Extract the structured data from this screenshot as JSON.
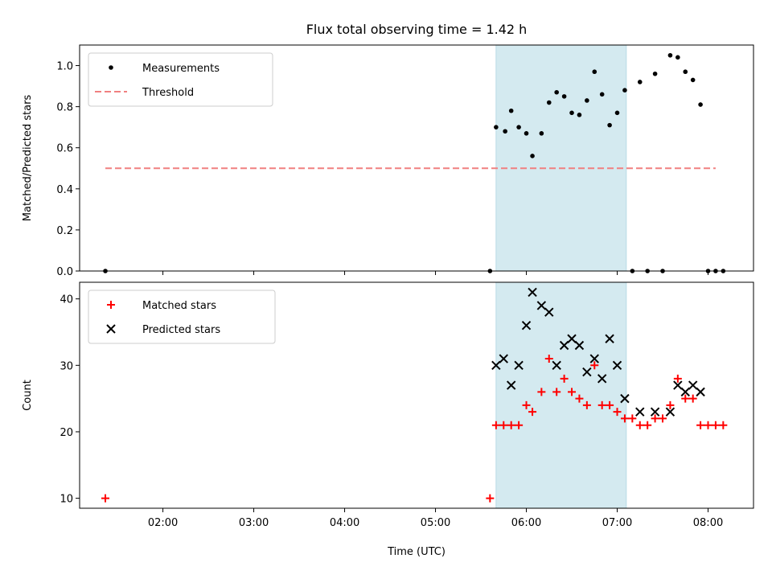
{
  "title": "Flux total observing time = 1.42 h",
  "xlabel": "Time (UTC)",
  "chart_data": [
    {
      "type": "scatter",
      "ylabel": "Matched/Predicted stars",
      "ylim": [
        0,
        1.1
      ],
      "yticks": [
        "0.0",
        "0.2",
        "0.4",
        "0.6",
        "0.8",
        "1.0"
      ],
      "xlim": [
        "01:05",
        "08:30"
      ],
      "legend": {
        "placement": "top-left",
        "entries": [
          "Measurements",
          "Threshold"
        ]
      },
      "shaded_interval": [
        "05:40",
        "07:06"
      ],
      "shade_color": "#d4eaf0",
      "series": [
        {
          "name": "Measurements",
          "color": "#000000",
          "marker": "dot",
          "points": [
            [
              "01:22",
              0.0
            ],
            [
              "05:36",
              0.0
            ],
            [
              "05:40",
              0.7
            ],
            [
              "05:46",
              0.68
            ],
            [
              "05:50",
              0.78
            ],
            [
              "05:55",
              0.7
            ],
            [
              "06:00",
              0.67
            ],
            [
              "06:04",
              0.56
            ],
            [
              "06:10",
              0.67
            ],
            [
              "06:15",
              0.82
            ],
            [
              "06:20",
              0.87
            ],
            [
              "06:25",
              0.85
            ],
            [
              "06:30",
              0.77
            ],
            [
              "06:35",
              0.76
            ],
            [
              "06:40",
              0.83
            ],
            [
              "06:45",
              0.97
            ],
            [
              "06:50",
              0.86
            ],
            [
              "06:55",
              0.71
            ],
            [
              "07:00",
              0.77
            ],
            [
              "07:05",
              0.88
            ],
            [
              "07:10",
              0.0
            ],
            [
              "07:15",
              0.92
            ],
            [
              "07:20",
              0.0
            ],
            [
              "07:25",
              0.96
            ],
            [
              "07:30",
              0.0
            ],
            [
              "07:35",
              1.05
            ],
            [
              "07:40",
              1.04
            ],
            [
              "07:45",
              0.97
            ],
            [
              "07:50",
              0.93
            ],
            [
              "07:55",
              0.81
            ],
            [
              "08:00",
              0.0
            ],
            [
              "08:05",
              0.0
            ],
            [
              "08:10",
              0.0
            ]
          ]
        },
        {
          "name": "Threshold",
          "color": "#f08080",
          "style": "dashed",
          "points": [
            [
              "01:22",
              0.5
            ],
            [
              "08:05",
              0.5
            ]
          ]
        }
      ]
    },
    {
      "type": "scatter",
      "ylabel": "Count",
      "ylim": [
        8.5,
        42.5
      ],
      "yticks": [
        "10",
        "20",
        "30",
        "40"
      ],
      "xlim": [
        "01:05",
        "08:30"
      ],
      "xticks": [
        "02:00",
        "03:00",
        "04:00",
        "05:00",
        "06:00",
        "07:00",
        "08:00"
      ],
      "legend": {
        "placement": "top-left",
        "entries": [
          "Matched stars",
          "Predicted stars"
        ]
      },
      "shaded_interval": [
        "05:40",
        "07:06"
      ],
      "shade_color": "#d4eaf0",
      "series": [
        {
          "name": "Matched stars",
          "color": "#ff0000",
          "marker": "plus",
          "points": [
            [
              "01:22",
              10
            ],
            [
              "05:36",
              10
            ],
            [
              "05:40",
              21
            ],
            [
              "05:45",
              21
            ],
            [
              "05:50",
              21
            ],
            [
              "05:55",
              21
            ],
            [
              "06:00",
              24
            ],
            [
              "06:04",
              23
            ],
            [
              "06:10",
              26
            ],
            [
              "06:15",
              31
            ],
            [
              "06:20",
              26
            ],
            [
              "06:25",
              28
            ],
            [
              "06:30",
              26
            ],
            [
              "06:35",
              25
            ],
            [
              "06:40",
              24
            ],
            [
              "06:45",
              30
            ],
            [
              "06:50",
              24
            ],
            [
              "06:55",
              24
            ],
            [
              "07:00",
              23
            ],
            [
              "07:05",
              22
            ],
            [
              "07:10",
              22
            ],
            [
              "07:15",
              21
            ],
            [
              "07:20",
              21
            ],
            [
              "07:25",
              22
            ],
            [
              "07:30",
              22
            ],
            [
              "07:35",
              24
            ],
            [
              "07:40",
              28
            ],
            [
              "07:45",
              25
            ],
            [
              "07:50",
              25
            ],
            [
              "07:55",
              21
            ],
            [
              "08:00",
              21
            ],
            [
              "08:05",
              21
            ],
            [
              "08:10",
              21
            ]
          ]
        },
        {
          "name": "Predicted stars",
          "color": "#000000",
          "marker": "x",
          "points": [
            [
              "05:40",
              30
            ],
            [
              "05:45",
              31
            ],
            [
              "05:50",
              27
            ],
            [
              "05:55",
              30
            ],
            [
              "06:00",
              36
            ],
            [
              "06:04",
              41
            ],
            [
              "06:10",
              39
            ],
            [
              "06:15",
              38
            ],
            [
              "06:20",
              30
            ],
            [
              "06:25",
              33
            ],
            [
              "06:30",
              34
            ],
            [
              "06:35",
              33
            ],
            [
              "06:40",
              29
            ],
            [
              "06:45",
              31
            ],
            [
              "06:50",
              28
            ],
            [
              "06:55",
              34
            ],
            [
              "07:00",
              30
            ],
            [
              "07:05",
              25
            ],
            [
              "07:15",
              23
            ],
            [
              "07:25",
              23
            ],
            [
              "07:35",
              23
            ],
            [
              "07:40",
              27
            ],
            [
              "07:45",
              26
            ],
            [
              "07:50",
              27
            ],
            [
              "07:55",
              26
            ]
          ]
        }
      ]
    }
  ]
}
